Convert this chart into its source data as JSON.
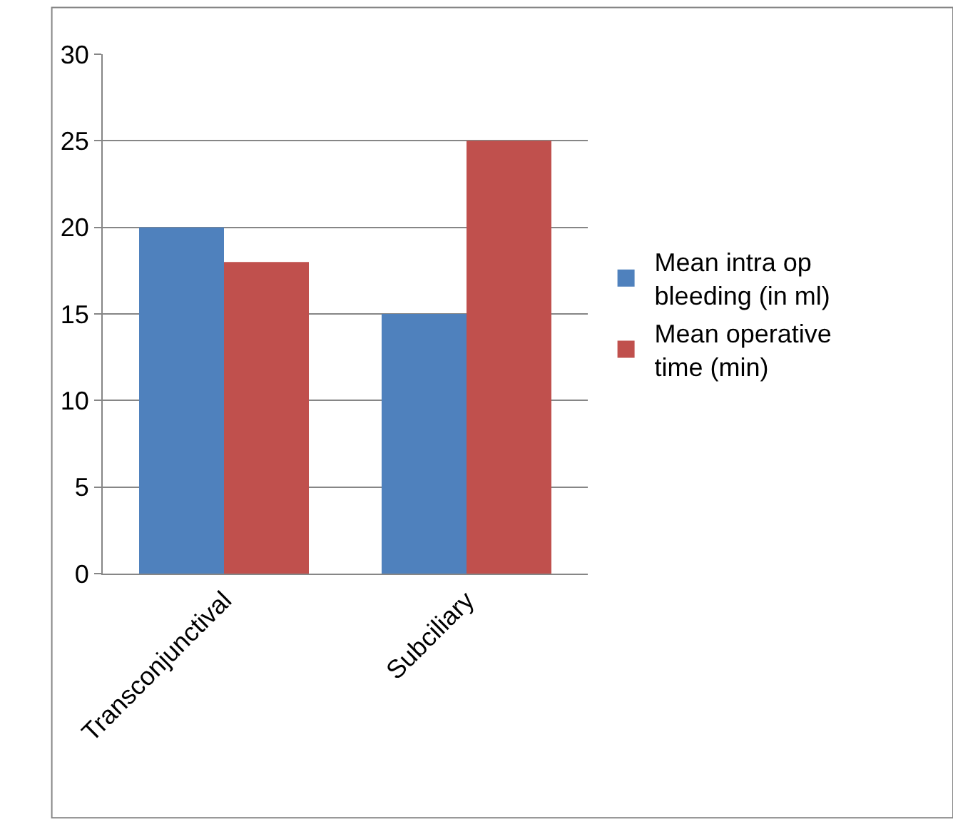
{
  "chart_data": {
    "type": "bar",
    "categories": [
      "Transconjunctival",
      "Subciliary"
    ],
    "series": [
      {
        "name": "Mean intra op bleeding (in ml)",
        "color": "#4f81bd",
        "values": [
          20,
          15
        ]
      },
      {
        "name": "Mean operative time (min)",
        "color": "#c0504d",
        "values": [
          18,
          25
        ]
      }
    ],
    "ylim": [
      0,
      30
    ],
    "yticks": [
      0,
      5,
      10,
      15,
      20,
      25,
      30
    ],
    "grid": "y",
    "legend": "right"
  }
}
